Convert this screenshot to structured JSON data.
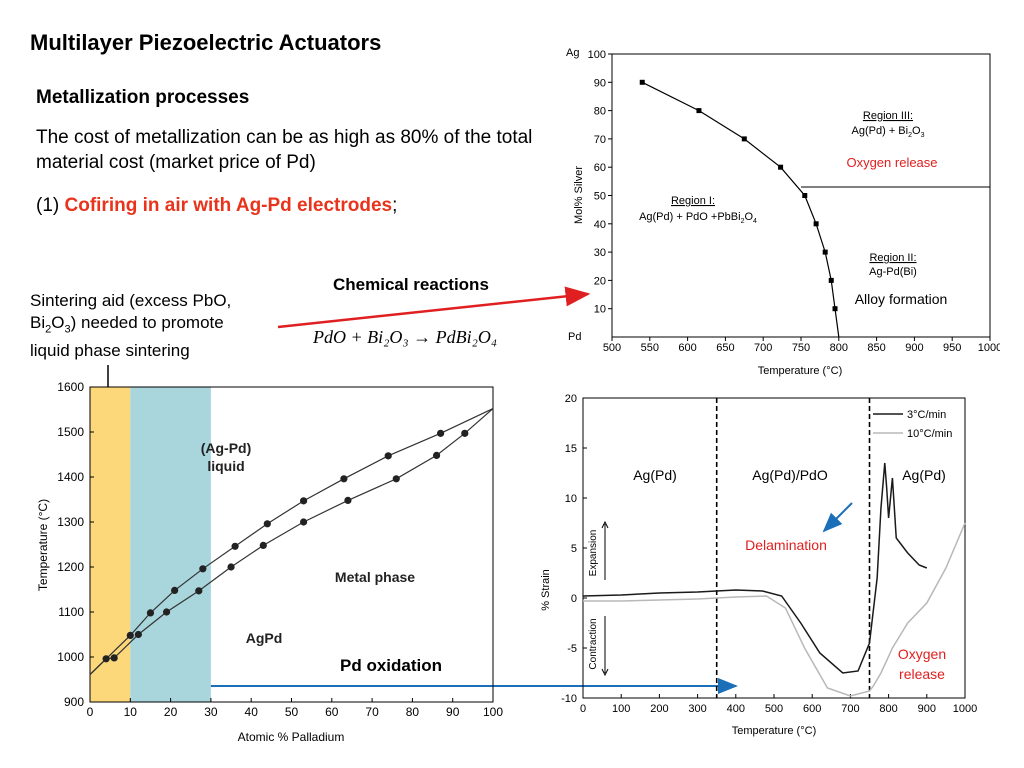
{
  "slide": {
    "title": "Multilayer Piezoelectric Actuators",
    "subheading": "Metallization processes",
    "paragraph": "The cost of metallization can be as high as 80% of the total material cost (market price of Pd)",
    "item_prefix": "(1) ",
    "item_highlight": "Cofiring in air with Ag-Pd electrodes",
    "item_suffix": ";",
    "chemical_reactions": "Chemical reactions",
    "sintering_note_1": "Sintering aid (excess PbO,",
    "sintering_note_2": "Bi",
    "sintering_note_3": "O",
    "sintering_note_4": ") needed to promote",
    "sintering_note_5": "liquid phase sintering",
    "equation": "PdO + Bi₂O₃ → PdBi₂O₄",
    "pd_oxidation": "Pd oxidation",
    "colors": {
      "accent_red": "#e8341c",
      "arrow_red": "#e02020",
      "arrow_blue": "#1a6fb8"
    }
  },
  "chart_data": [
    {
      "type": "line",
      "id": "ag-pd-oxygen",
      "xlabel": "Temperature (°C)",
      "ylabel": "Mol% Silver",
      "xlim": [
        500,
        1000
      ],
      "ylim": [
        0,
        100
      ],
      "xticks": [
        500,
        550,
        600,
        650,
        700,
        750,
        800,
        850,
        900,
        950,
        1000
      ],
      "yticks": [
        10,
        20,
        30,
        40,
        50,
        60,
        70,
        80,
        90,
        100
      ],
      "y_top_label": "Ag",
      "y_bottom_label": "Pd",
      "series": [
        {
          "name": "boundary",
          "x": [
            540,
            615,
            675,
            723,
            755,
            770,
            782,
            790,
            795,
            800
          ],
          "y": [
            90,
            80,
            70,
            60,
            50,
            40,
            30,
            20,
            10,
            0
          ]
        }
      ],
      "horizontal_line": {
        "y": 53,
        "xmin": 750,
        "xmax": 1000
      },
      "regions": [
        {
          "name": "Region III:",
          "desc_main": "Ag(Pd) + Bi",
          "sub1": "2",
          "desc_mid": "O",
          "sub2": "3"
        },
        {
          "name": "Region I:",
          "desc_main": "Ag(Pd) + PdO +PbBi",
          "sub1": "2",
          "desc_mid": "O",
          "sub2": "4"
        },
        {
          "name": "Region II:",
          "desc": "Ag-Pd(Bi)"
        }
      ],
      "annotations": [
        "Oxygen release",
        "Alloy formation"
      ]
    },
    {
      "type": "line",
      "id": "ag-pd-phase",
      "xlabel": "Atomic % Palladium",
      "ylabel": "Temperature (°C)",
      "xlim": [
        0,
        100
      ],
      "ylim": [
        900,
        1600
      ],
      "xticks": [
        0,
        10,
        20,
        30,
        40,
        50,
        60,
        70,
        80,
        90,
        100
      ],
      "yticks": [
        900,
        1000,
        1100,
        1200,
        1300,
        1400,
        1500,
        1600
      ],
      "series": [
        {
          "name": "liquidus",
          "x": [
            0,
            10,
            15,
            21,
            28,
            36,
            44,
            53,
            63,
            74,
            87,
            100
          ],
          "y": [
            961,
            1048,
            1098,
            1148,
            1196,
            1246,
            1296,
            1347,
            1396,
            1447,
            1497,
            1552
          ]
        },
        {
          "name": "solidus",
          "x": [
            0,
            4,
            6,
            12,
            19,
            27,
            35,
            43,
            53,
            64,
            76,
            86,
            93,
            100
          ],
          "y": [
            961,
            996,
            998,
            1050,
            1100,
            1147,
            1200,
            1248,
            1300,
            1348,
            1396,
            1448,
            1497,
            1552
          ]
        }
      ],
      "shaded_ranges": [
        {
          "x": [
            0,
            10
          ],
          "color": "#fcd87a"
        },
        {
          "x": [
            10,
            30
          ],
          "color": "#a8d6dc"
        }
      ],
      "labels": [
        "(Ag-Pd)",
        "liquid",
        "Metal phase",
        "AgPd"
      ]
    },
    {
      "type": "line",
      "id": "strain",
      "xlabel": "Temperature (°C)",
      "ylabel": "% Strain",
      "xlim": [
        0,
        1000
      ],
      "ylim": [
        -10,
        20
      ],
      "xticks": [
        0,
        100,
        200,
        300,
        400,
        500,
        600,
        700,
        800,
        900,
        1000
      ],
      "yticks": [
        -10,
        -5,
        0,
        5,
        10,
        15,
        20
      ],
      "vlines": [
        350,
        750
      ],
      "series": [
        {
          "name": "3°C/min",
          "color": "#1a1a1a",
          "x": [
            0,
            100,
            200,
            300,
            350,
            400,
            470,
            520,
            570,
            620,
            680,
            720,
            750,
            770,
            780,
            790,
            795,
            800,
            810,
            820,
            830,
            850,
            880,
            900
          ],
          "y": [
            0.2,
            0.3,
            0.5,
            0.6,
            0.7,
            0.8,
            0.7,
            0.2,
            -2.5,
            -5.5,
            -7.5,
            -7.3,
            -4.5,
            2,
            9,
            13.5,
            11,
            8,
            12,
            6,
            5.5,
            4.5,
            3.3,
            3
          ]
        },
        {
          "name": "10°C/min",
          "color": "#b8b8b8",
          "x": [
            0,
            100,
            200,
            300,
            400,
            480,
            530,
            580,
            640,
            700,
            750,
            760,
            780,
            810,
            850,
            900,
            950,
            1000
          ],
          "y": [
            -0.3,
            -0.3,
            -0.2,
            -0.1,
            0.1,
            0.2,
            -1.0,
            -5,
            -9.0,
            -9.8,
            -9.3,
            -8.8,
            -7.5,
            -5,
            -2.5,
            -0.5,
            3,
            7.5
          ]
        }
      ],
      "legend": [
        "3°C/min",
        "10°C/min"
      ],
      "regions": [
        "Ag(Pd)",
        "Ag(Pd)/PdO",
        "Ag(Pd)"
      ],
      "axis_notes": [
        "Expansion",
        "Contraction"
      ],
      "annotations": [
        "Delamination",
        "Oxygen",
        "release"
      ]
    }
  ]
}
